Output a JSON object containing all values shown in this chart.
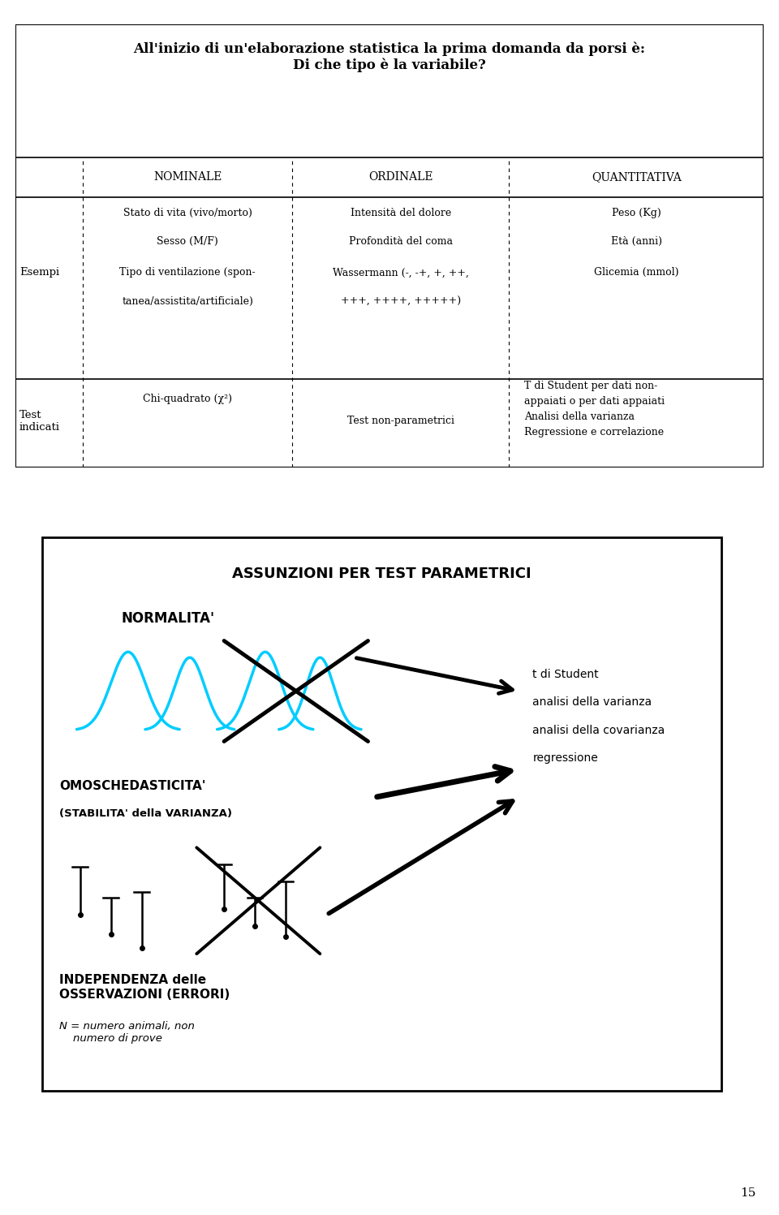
{
  "bg_color": "#ffffff",
  "page_num": "15",
  "title_text": "All'inizio di un'elaborazione statistica la prima domanda da porsi è:\nDi che tipo è la variabile?",
  "table": {
    "col_headers": [
      "NOMINALE",
      "ORDINALE",
      "QUANTITATIVA"
    ],
    "row1_label": "Esempi",
    "nominale_examples": [
      "Stato di vita (vivo/morto)",
      "Sesso (M/F)",
      "Tipo di ventilazione (spon-",
      "tanea/assistita/artificiale)"
    ],
    "ordinale_examples": [
      "Intensità del dolore",
      "Profondità del coma",
      "Wassermann (-, -+, +, ++,",
      "+++, ++++, +++++)"
    ],
    "quantitativa_examples": [
      "Peso (Kg)",
      "Età (anni)",
      "Glicemia (mmol)"
    ],
    "row2_label": "Test\nindicati",
    "nominale_tests": "Chi-quadrato (χ²)",
    "ordinale_tests": "Test non-parametrici",
    "quantitativa_tests": [
      "T di Student per dati non-",
      "appaiati o per dati appaiati",
      "Analisi della varianza",
      "Regressione e correlazione"
    ]
  },
  "box2": {
    "title": "ASSUNZIONI PER TEST PARAMETRICI",
    "normalita_label": "NORMALITA'",
    "omoschedasticita_label": "OMOSCHEDASTICITA'",
    "stabilita_label": "(STABILITA' della VARIANZA)",
    "independenza_label": "INDEPENDENZA delle\nOSSERVAZIONI (ERRORI)",
    "n_label": "N = numero animali, non\n    numero di prove",
    "cyan_color": "#00ccff",
    "arrow_color": "#000000"
  }
}
